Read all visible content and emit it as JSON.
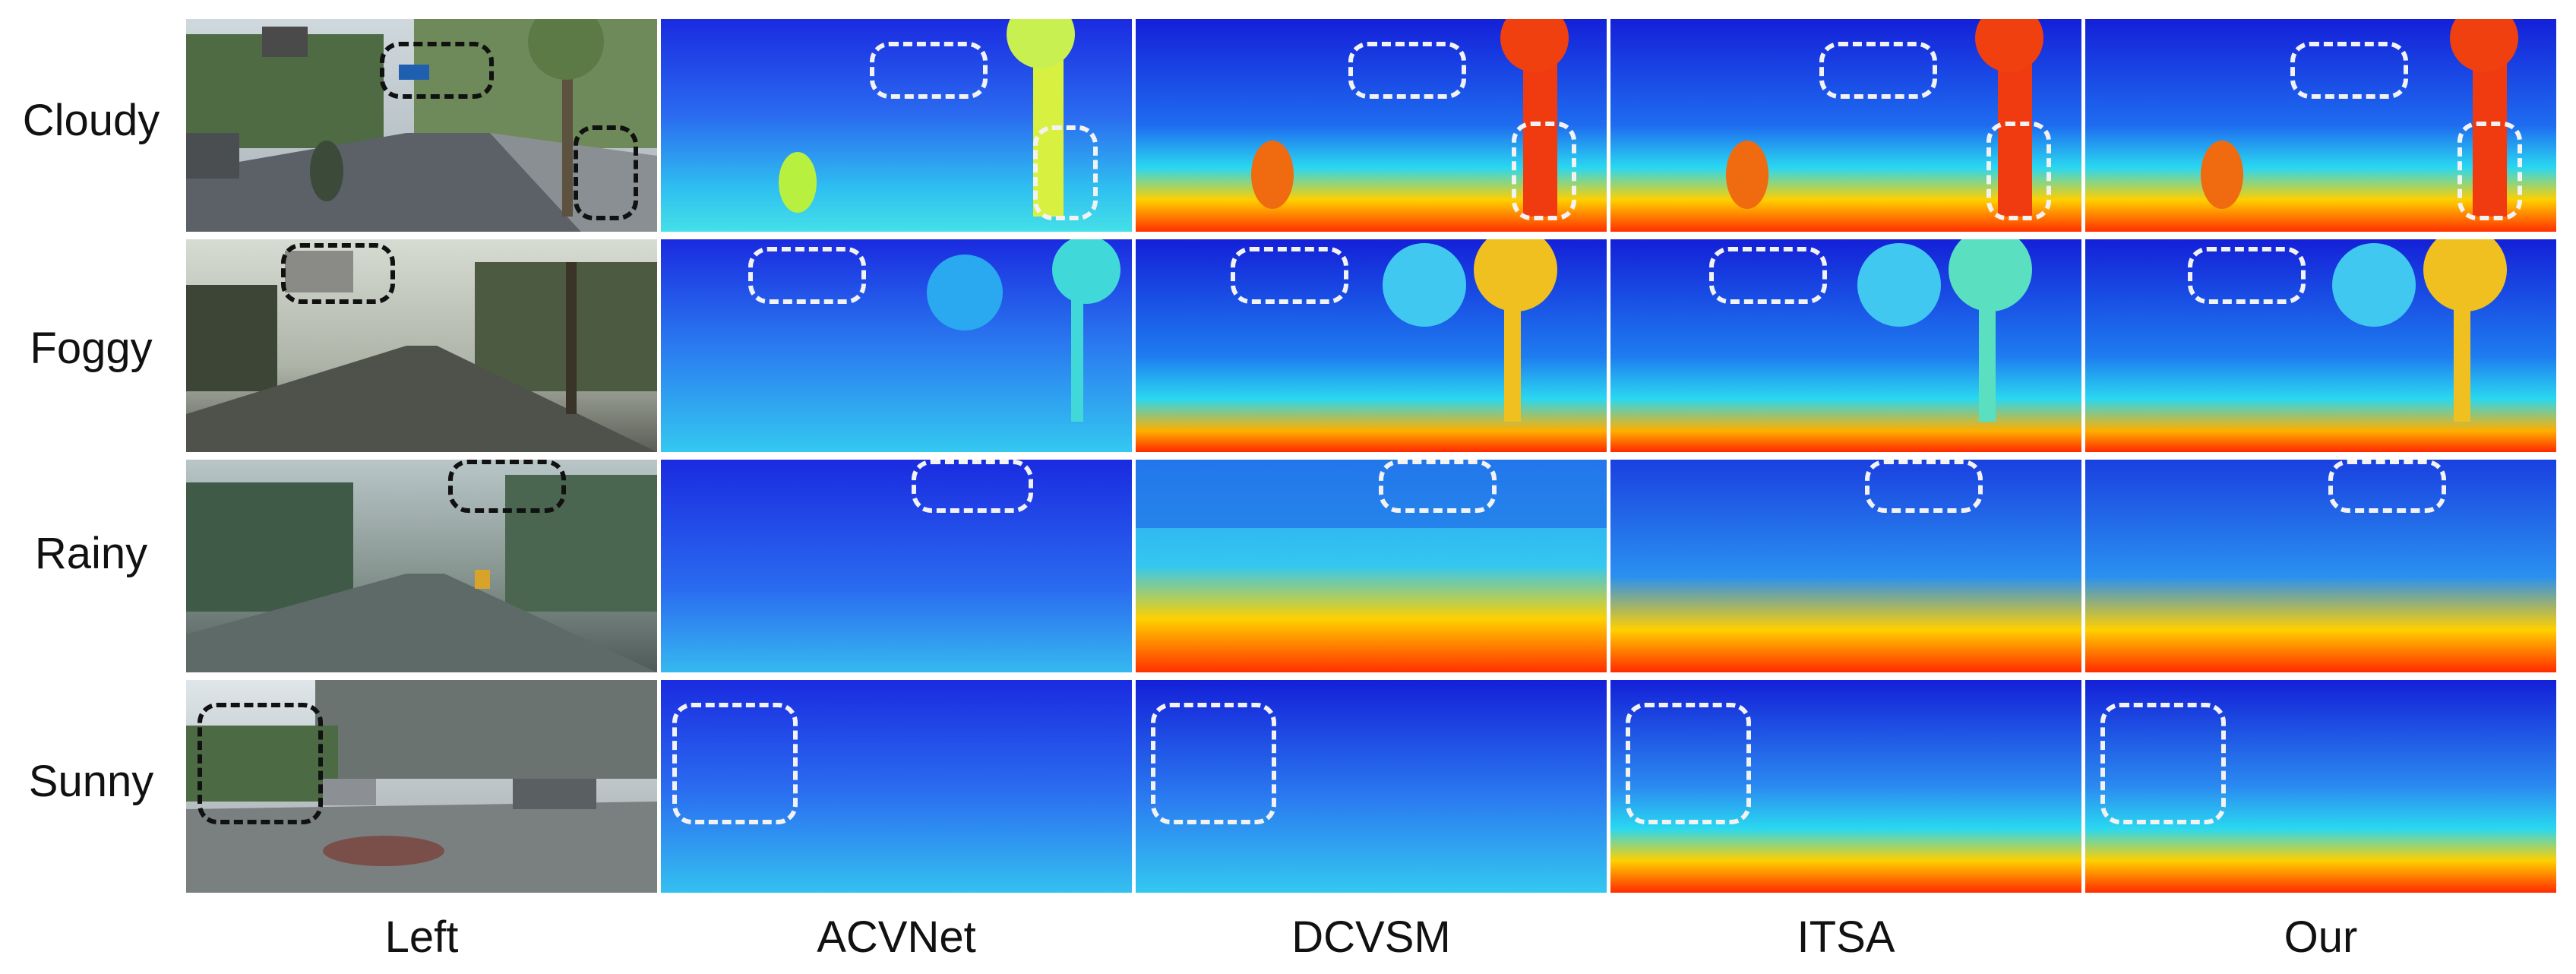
{
  "rows": [
    "Cloudy",
    "Foggy",
    "Rainy",
    "Sunny"
  ],
  "columns": [
    "Left",
    "ACVNet",
    "DCVSM",
    "ITSA",
    "Our"
  ],
  "colors": {
    "depth_far": "#1420d8",
    "depth_mid": "#1ec8f0",
    "depth_near": "#ff2a00",
    "highlight_rgb": "#111111",
    "highlight_depth": "#f2f2f2"
  }
}
